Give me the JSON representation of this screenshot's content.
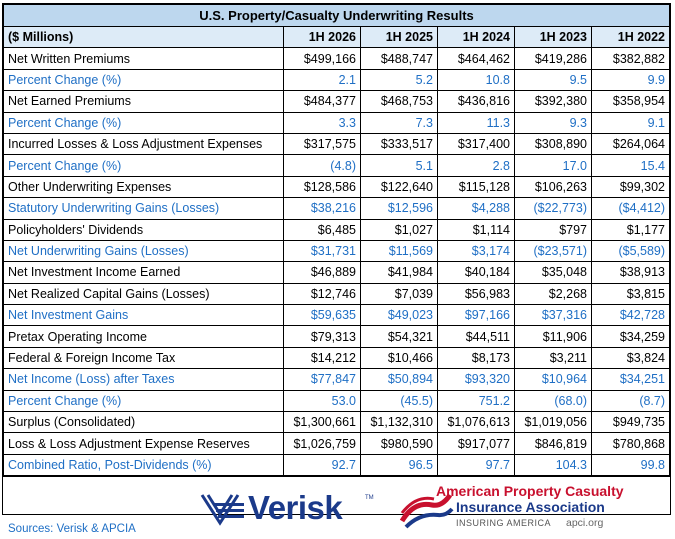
{
  "title": "U.S. Property/Casualty Underwriting Results",
  "header": {
    "unit_label": "($ Millions)",
    "columns": [
      "1H 2026",
      "1H 2025",
      "1H 2024",
      "1H 2023",
      "1H 2022"
    ]
  },
  "rows": [
    {
      "label": "Net Written Premiums",
      "style": "black",
      "values": [
        "$499,166",
        "$488,747",
        "$464,462",
        "$419,286",
        "$382,882"
      ]
    },
    {
      "label": "Percent Change (%)",
      "style": "blue",
      "values": [
        "2.1",
        "5.2",
        "10.8",
        "9.5",
        "9.9"
      ]
    },
    {
      "label": "Net Earned Premiums",
      "style": "black",
      "values": [
        "$484,377",
        "$468,753",
        "$436,816",
        "$392,380",
        "$358,954"
      ]
    },
    {
      "label": "Percent Change (%)",
      "style": "blue",
      "values": [
        "3.3",
        "7.3",
        "11.3",
        "9.3",
        "9.1"
      ]
    },
    {
      "label": "Incurred Losses & Loss Adjustment Expenses",
      "style": "black",
      "values": [
        "$317,575",
        "$333,517",
        "$317,400",
        "$308,890",
        "$264,064"
      ]
    },
    {
      "label": "Percent Change (%)",
      "style": "blue",
      "values": [
        "(4.8)",
        "5.1",
        "2.8",
        "17.0",
        "15.4"
      ]
    },
    {
      "label": "Other Underwriting Expenses",
      "style": "black",
      "values": [
        "$128,586",
        "$122,640",
        "$115,128",
        "$106,263",
        "$99,302"
      ]
    },
    {
      "label": "Statutory Underwriting Gains (Losses)",
      "style": "blue",
      "values": [
        "$38,216",
        "$12,596",
        "$4,288",
        "($22,773)",
        "($4,412)"
      ]
    },
    {
      "label": "Policyholders' Dividends",
      "style": "black",
      "values": [
        "$6,485",
        "$1,027",
        "$1,114",
        "$797",
        "$1,177"
      ]
    },
    {
      "label": "Net Underwriting Gains (Losses)",
      "style": "blue",
      "values": [
        "$31,731",
        "$11,569",
        "$3,174",
        "($23,571)",
        "($5,589)"
      ]
    },
    {
      "label": "Net Investment Income Earned",
      "style": "black",
      "values": [
        "$46,889",
        "$41,984",
        "$40,184",
        "$35,048",
        "$38,913"
      ]
    },
    {
      "label": "Net Realized Capital Gains (Losses)",
      "style": "black",
      "values": [
        "$12,746",
        "$7,039",
        "$56,983",
        "$2,268",
        "$3,815"
      ]
    },
    {
      "label": "Net Investment Gains",
      "style": "blue",
      "values": [
        "$59,635",
        "$49,023",
        "$97,166",
        "$37,316",
        "$42,728"
      ]
    },
    {
      "label": "Pretax Operating Income",
      "style": "black",
      "values": [
        "$79,313",
        "$54,321",
        "$44,511",
        "$11,906",
        "$34,259"
      ]
    },
    {
      "label": "Federal & Foreign Income Tax",
      "style": "black",
      "values": [
        "$14,212",
        "$10,466",
        "$8,173",
        "$3,211",
        "$3,824"
      ]
    },
    {
      "label": "Net Income (Loss) after Taxes",
      "style": "blue",
      "values": [
        "$77,847",
        "$50,894",
        "$93,320",
        "$10,964",
        "$34,251"
      ]
    },
    {
      "label": "Percent Change (%)",
      "style": "blue",
      "values": [
        "53.0",
        "(45.5)",
        "751.2",
        "(68.0)",
        "(8.7)"
      ]
    },
    {
      "label": "Surplus (Consolidated)",
      "style": "black",
      "values": [
        "$1,300,661",
        "$1,132,310",
        "$1,076,613",
        "$1,019,056",
        "$949,735"
      ]
    },
    {
      "label": "Loss & Loss Adjustment Expense Reserves",
      "style": "black",
      "values": [
        "$1,026,759",
        "$980,590",
        "$917,077",
        "$846,819",
        "$780,868"
      ]
    },
    {
      "label": "Combined Ratio, Post-Dividends (%)",
      "style": "blue",
      "values": [
        "92.7",
        "96.5",
        "97.7",
        "104.3",
        "99.8"
      ]
    }
  ],
  "footer": {
    "sources": "Sources: Verisk & APCIA",
    "verisk_logo_text": "Verisk",
    "verisk_tm": "TM",
    "apci_line1": "American Property Casualty",
    "apci_line2": "Insurance Association",
    "apci_tagline": "INSURING AMERICA",
    "apci_url": "apci.org",
    "colors": {
      "blue_text": "#1f6fc5",
      "title_bg": "#bdd7ee",
      "header_bg": "#ddebf7",
      "verisk_navy": "#1b3a8a",
      "apci_red": "#c8102e"
    }
  }
}
